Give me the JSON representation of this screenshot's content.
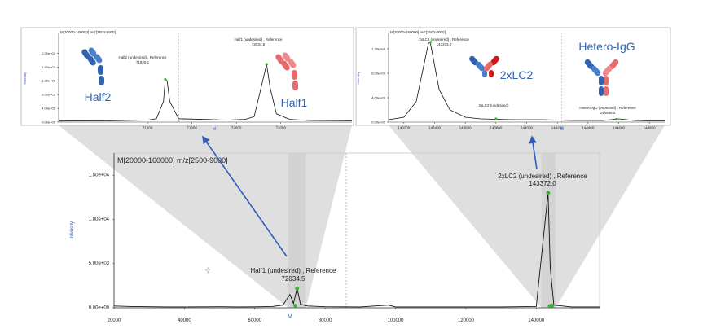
{
  "chart_data": [
    {
      "type": "line",
      "title": "M[20000-160000] m/z[2500-9000]",
      "xlabel": "",
      "ylabel": "Intensity",
      "xlim": [
        20000,
        158000
      ],
      "ylim": [
        0,
        17500
      ],
      "x_ticks": [
        "20000",
        "40000",
        "60000",
        "80000",
        "100000",
        "120000",
        "140000"
      ],
      "x_tick_values": [
        20000,
        40000,
        60000,
        80000,
        100000,
        120000,
        140000
      ],
      "y_ticks": [
        "0.00e+00",
        "5.00e+03",
        "1.00e+04",
        "1.50e+04"
      ],
      "y_tick_values": [
        0,
        5000,
        10000,
        15000
      ],
      "x_marker": "M",
      "x_marker_value": 70000,
      "cursor_glyph": "-¦-",
      "series": [
        {
          "x": [
            20000,
            25000,
            30000,
            35000,
            40000,
            45000,
            50000,
            55000,
            60000,
            65000,
            68000,
            70000,
            71000,
            72034,
            73000,
            75000,
            80000,
            90000,
            98000,
            100000,
            110000,
            120000,
            130000,
            140000,
            143372,
            144000,
            145000,
            150000,
            158000
          ],
          "y": [
            200,
            150,
            120,
            100,
            100,
            110,
            120,
            100,
            110,
            150,
            300,
            1500,
            500,
            2200,
            400,
            200,
            120,
            100,
            300,
            100,
            100,
            100,
            100,
            150,
            13000,
            4500,
            300,
            100,
            100
          ]
        }
      ],
      "annotations": [
        {
          "label": "Half1 (undesired) , Reference",
          "value": "72034.5",
          "x": 72034,
          "y": 2200
        },
        {
          "label": "2xLC2 (undesired) , Reference",
          "value": "143372.0",
          "x": 143372,
          "y": 13000
        }
      ]
    },
    {
      "type": "line",
      "title": "M[20000-160000] m/z[2500-9000]",
      "ylabel": "Intensity",
      "xlim": [
        71800,
        72130
      ],
      "ylim": [
        0,
        1.3
      ],
      "x_ticks": [
        "71900",
        "71950",
        "72000",
        "72050"
      ],
      "x_tick_values": [
        71900,
        71950,
        72000,
        72050
      ],
      "y_ticks": [
        "0.00e+00",
        "4.00e+02",
        "8.00e+02",
        "1.20e+03",
        "1.60e+03",
        "2.00e+03"
      ],
      "y_tick_values": [
        0,
        0.2,
        0.4,
        0.6,
        0.8,
        1.0
      ],
      "x_marker": "M",
      "x_marker_value": 71975,
      "series": [
        {
          "x": [
            71800,
            71860,
            71900,
            71910,
            71918,
            71920,
            71922,
            71925,
            71935,
            71990,
            72010,
            72020,
            72026,
            72034,
            72038,
            72045,
            72060,
            72080,
            72130
          ],
          "y": [
            0.015,
            0.02,
            0.03,
            0.05,
            0.3,
            0.62,
            0.6,
            0.3,
            0.05,
            0.03,
            0.04,
            0.08,
            0.4,
            0.84,
            0.5,
            0.12,
            0.04,
            0.025,
            0.02
          ]
        }
      ],
      "annotations": [
        {
          "label": "Half2 (undesired) , Reference",
          "value": "71920.1",
          "x": 71920,
          "y": 0.62
        },
        {
          "label": "Half1 (undesired) , Reference",
          "value": "72034.5",
          "x": 72034,
          "y": 0.84
        }
      ],
      "labels": [
        "Half2",
        "Half1"
      ]
    },
    {
      "type": "line",
      "title": "M[20000-160000] m/z[2500-9000]",
      "ylabel": "Intensity",
      "xlim": [
        143100,
        144900
      ],
      "ylim": [
        0,
        1.1
      ],
      "x_ticks": [
        "143200",
        "143400",
        "143600",
        "143800",
        "144000",
        "144200",
        "144400",
        "144600",
        "144800"
      ],
      "x_tick_values": [
        143200,
        143400,
        143600,
        143800,
        144000,
        144200,
        144400,
        144600,
        144800
      ],
      "y_ticks": [
        "0.00e+00",
        "4.00e+03",
        "8.00e+03",
        "1.20e+04"
      ],
      "y_tick_values": [
        0,
        0.3,
        0.6,
        0.9
      ],
      "x_marker": "M",
      "x_marker_value": 144230,
      "series": [
        {
          "x": [
            143100,
            143200,
            143280,
            143330,
            143360,
            143372,
            143390,
            143430,
            143500,
            143600,
            143700,
            143800,
            143900,
            144000,
            144100,
            144200,
            144300,
            144400,
            144500,
            144550,
            144600,
            144650,
            144700,
            144800,
            144900
          ],
          "y": [
            0.03,
            0.06,
            0.25,
            0.7,
            0.97,
            0.98,
            0.8,
            0.4,
            0.15,
            0.06,
            0.04,
            0.035,
            0.03,
            0.03,
            0.03,
            0.025,
            0.02,
            0.02,
            0.02,
            0.03,
            0.04,
            0.03,
            0.02,
            0.015,
            0.015
          ]
        }
      ],
      "annotations": [
        {
          "label": "2xLC2 (undesired) , Reference",
          "value": "143372.0",
          "x": 143372,
          "y": 0.98
        },
        {
          "label": "2xLC2 (undesired)",
          "value": "",
          "x": 143800,
          "y": 0.04
        },
        {
          "label": "Hetero-IgG (expected) , Reference",
          "value": "144585.0",
          "x": 144585,
          "y": 0.035
        }
      ],
      "labels": [
        "2xLC2",
        "Hetero-IgG"
      ]
    }
  ],
  "colors": {
    "trace": "#111111",
    "marker": "#2fb52f",
    "arrow": "#2e5cb8",
    "funnel": "#d4d4d4",
    "half2_blue": "#2f63b0",
    "half1_red": "#e86a6a",
    "lc2_red": "#d01818"
  }
}
